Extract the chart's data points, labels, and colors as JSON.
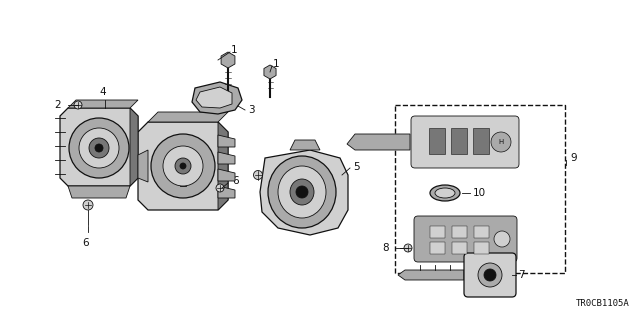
{
  "bg_color": "#ffffff",
  "line_color": "#111111",
  "gray_light": "#d0d0d0",
  "gray_mid": "#aaaaaa",
  "gray_dark": "#777777",
  "diagram_code": "TR0CB1105A",
  "fig_width": 6.4,
  "fig_height": 3.2,
  "dpi": 100
}
